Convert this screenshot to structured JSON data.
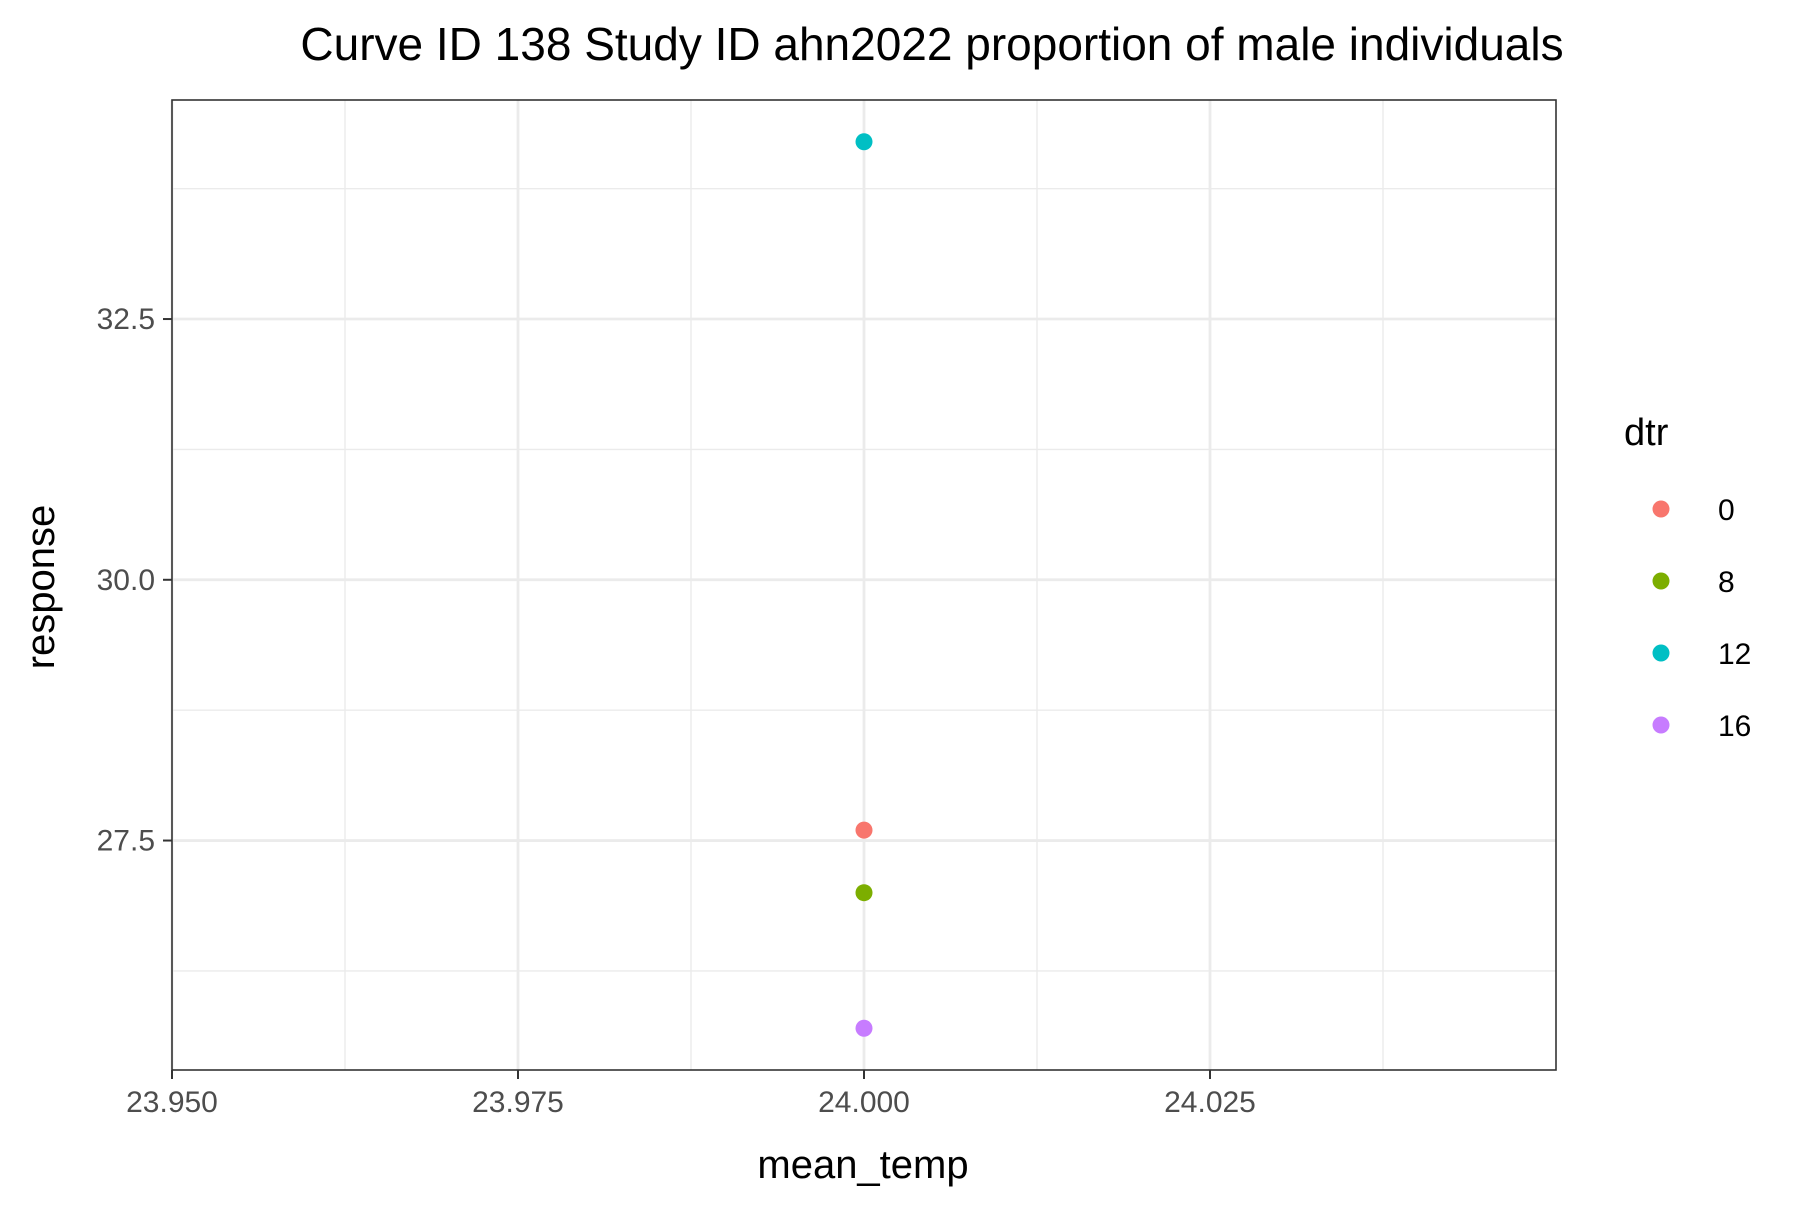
{
  "chart_data": {
    "type": "scatter",
    "title": "Curve ID 138 Study ID ahn2022 proportion of male individuals",
    "xlabel": "mean_temp",
    "ylabel": "response",
    "xlim": [
      23.95,
      24.05
    ],
    "ylim": [
      25.3,
      34.6
    ],
    "x_ticks": [
      23.95,
      23.975,
      24.0,
      24.025
    ],
    "x_tick_labels": [
      "23.950",
      "23.975",
      "24.000",
      "24.025"
    ],
    "y_ticks": [
      27.5,
      30.0,
      32.5
    ],
    "y_tick_labels": [
      "27.5",
      "30.0",
      "32.5"
    ],
    "x_minor_ticks": [
      23.9625,
      23.9875,
      24.0125,
      24.0375
    ],
    "y_minor_ticks": [
      26.25,
      28.75,
      31.25,
      33.75
    ],
    "grid": true,
    "legend": {
      "title": "dtr",
      "placement": "right",
      "entries": [
        {
          "label": "0",
          "color": "#F8766D"
        },
        {
          "label": "8",
          "color": "#7CAE00"
        },
        {
          "label": "12",
          "color": "#00BFC4"
        },
        {
          "label": "16",
          "color": "#C77CFF"
        }
      ]
    },
    "series": [
      {
        "name": "0",
        "color": "#F8766D",
        "points": [
          {
            "x": 24.0,
            "y": 27.6
          }
        ]
      },
      {
        "name": "8",
        "color": "#7CAE00",
        "points": [
          {
            "x": 24.0,
            "y": 27.0
          }
        ]
      },
      {
        "name": "12",
        "color": "#00BFC4",
        "points": [
          {
            "x": 24.0,
            "y": 34.2
          }
        ]
      },
      {
        "name": "16",
        "color": "#C77CFF",
        "points": [
          {
            "x": 24.0,
            "y": 25.7
          }
        ]
      }
    ]
  }
}
